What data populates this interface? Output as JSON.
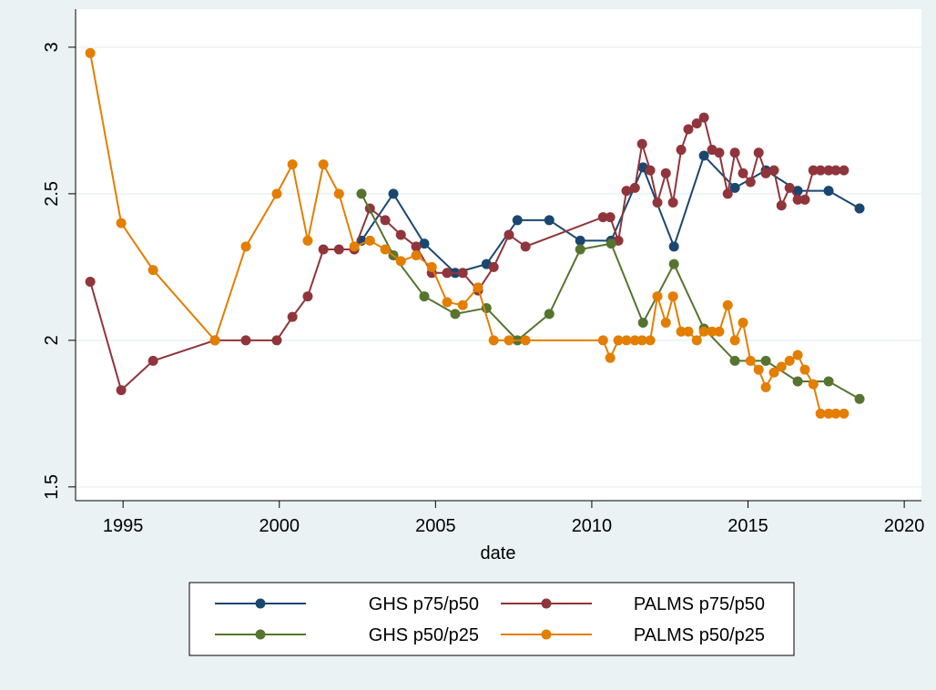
{
  "chart_data": {
    "type": "line",
    "x_label": "date",
    "xlim": [
      1993.48,
      2020.55
    ],
    "ylim": [
      1.453,
      3.13
    ],
    "xticks": [
      1995,
      2000,
      2005,
      2010,
      2015,
      2020
    ],
    "yticks": [
      {
        "value": 1.5,
        "label": "1.5"
      },
      2,
      2.5,
      3
    ],
    "grid": true,
    "legend": "bottom",
    "series": [
      {
        "name": "GHS p75/p50",
        "color": "#1a476f",
        "x": [
          2002.63,
          2003.65,
          2004.64,
          2005.63,
          2006.63,
          2007.62,
          2008.64,
          2009.63,
          2010.62,
          2011.64,
          2012.63,
          2013.59,
          2014.58,
          2015.57,
          2016.59,
          2017.58,
          2018.57
        ],
        "values": [
          2.34,
          2.5,
          2.33,
          2.23,
          2.26,
          2.41,
          2.41,
          2.34,
          2.34,
          2.59,
          2.32,
          2.63,
          2.52,
          2.58,
          2.51,
          2.51,
          2.45
        ]
      },
      {
        "name": "PALMS p75/p50",
        "color": "#90353b",
        "x": [
          1993.95,
          1994.94,
          1995.96,
          1997.94,
          1998.93,
          1999.92,
          2000.42,
          2000.91,
          2001.41,
          2001.91,
          2002.4,
          2002.9,
          2003.39,
          2003.89,
          2004.38,
          2004.88,
          2005.37,
          2005.87,
          2006.36,
          2006.86,
          2007.35,
          2007.88,
          2010.36,
          2010.59,
          2010.85,
          2011.11,
          2011.38,
          2011.61,
          2011.87,
          2012.1,
          2012.37,
          2012.6,
          2012.86,
          2013.09,
          2013.36,
          2013.59,
          2013.85,
          2014.08,
          2014.35,
          2014.58,
          2014.84,
          2015.08,
          2015.34,
          2015.57,
          2015.83,
          2016.07,
          2016.33,
          2016.59,
          2016.82,
          2017.09,
          2017.32,
          2017.58,
          2017.81,
          2018.07
        ],
        "values": [
          2.2,
          1.83,
          1.93,
          2.0,
          2.0,
          2.0,
          2.08,
          2.15,
          2.31,
          2.31,
          2.31,
          2.45,
          2.41,
          2.36,
          2.32,
          2.23,
          2.23,
          2.23,
          2.17,
          2.25,
          2.36,
          2.32,
          2.42,
          2.42,
          2.34,
          2.51,
          2.52,
          2.67,
          2.58,
          2.47,
          2.57,
          2.47,
          2.65,
          2.72,
          2.74,
          2.76,
          2.65,
          2.64,
          2.5,
          2.64,
          2.57,
          2.54,
          2.64,
          2.57,
          2.58,
          2.46,
          2.52,
          2.48,
          2.48,
          2.58,
          2.58,
          2.58,
          2.58,
          2.58
        ]
      },
      {
        "name": "GHS p50/p25",
        "color": "#55752f",
        "x": [
          2002.63,
          2003.65,
          2004.64,
          2005.63,
          2006.63,
          2007.62,
          2008.64,
          2009.63,
          2010.62,
          2011.64,
          2012.63,
          2013.59,
          2014.58,
          2015.57,
          2016.59,
          2017.58,
          2018.57
        ],
        "values": [
          2.5,
          2.29,
          2.15,
          2.09,
          2.11,
          2.0,
          2.09,
          2.31,
          2.33,
          2.06,
          2.26,
          2.04,
          1.93,
          1.93,
          1.86,
          1.86,
          1.8
        ]
      },
      {
        "name": "PALMS p50/p25",
        "color": "#e37e00",
        "x": [
          1993.95,
          1994.94,
          1995.96,
          1997.94,
          1998.93,
          1999.92,
          2000.42,
          2000.91,
          2001.41,
          2001.91,
          2002.4,
          2002.9,
          2003.39,
          2003.89,
          2004.38,
          2004.88,
          2005.37,
          2005.87,
          2006.36,
          2006.86,
          2007.35,
          2007.88,
          2010.36,
          2010.59,
          2010.85,
          2011.11,
          2011.38,
          2011.61,
          2011.87,
          2012.1,
          2012.37,
          2012.6,
          2012.86,
          2013.09,
          2013.36,
          2013.59,
          2013.85,
          2014.08,
          2014.35,
          2014.58,
          2014.84,
          2015.08,
          2015.34,
          2015.57,
          2015.83,
          2016.07,
          2016.33,
          2016.59,
          2016.82,
          2017.09,
          2017.32,
          2017.58,
          2017.81,
          2018.07
        ],
        "values": [
          2.98,
          2.4,
          2.24,
          2.0,
          2.32,
          2.5,
          2.6,
          2.34,
          2.6,
          2.5,
          2.32,
          2.34,
          2.31,
          2.27,
          2.29,
          2.25,
          2.13,
          2.12,
          2.18,
          2.0,
          2.0,
          2.0,
          2.0,
          1.94,
          2.0,
          2.0,
          2.0,
          2.0,
          2.0,
          2.15,
          2.06,
          2.15,
          2.03,
          2.03,
          2.0,
          2.03,
          2.03,
          2.03,
          2.12,
          2.0,
          2.06,
          1.93,
          1.9,
          1.84,
          1.89,
          1.91,
          1.93,
          1.95,
          1.9,
          1.85,
          1.75,
          1.75,
          1.75,
          1.75
        ]
      }
    ]
  }
}
